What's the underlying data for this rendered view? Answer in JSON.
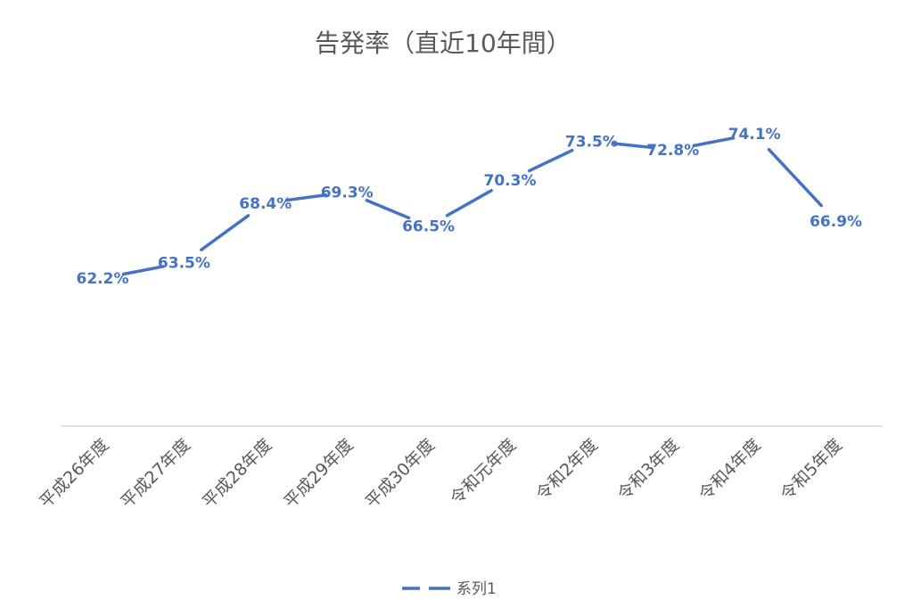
{
  "chart_data": {
    "type": "line",
    "title": "告発率（直近10年間）",
    "categories": [
      "平成26年度",
      "平成27年度",
      "平成28年度",
      "平成29年度",
      "平成30年度",
      "令和元年度",
      "令和2年度",
      "令和3年度",
      "令和4年度",
      "令和5年度"
    ],
    "series": [
      {
        "name": "系列1",
        "values": [
          62.2,
          63.5,
          68.4,
          69.3,
          66.5,
          70.3,
          73.5,
          72.8,
          74.1,
          66.9
        ],
        "labels": [
          "62.2%",
          "63.5%",
          "68.4%",
          "69.3%",
          "66.5%",
          "70.3%",
          "73.5%",
          "72.8%",
          "74.1%",
          "66.9%"
        ],
        "color": "#4472c4"
      }
    ],
    "xlabel": "",
    "ylabel": "",
    "ylim": [
      50,
      80
    ],
    "grid": false,
    "legend_position": "bottom",
    "axis_color": "#d9d9d9",
    "text_color": "#595959"
  }
}
